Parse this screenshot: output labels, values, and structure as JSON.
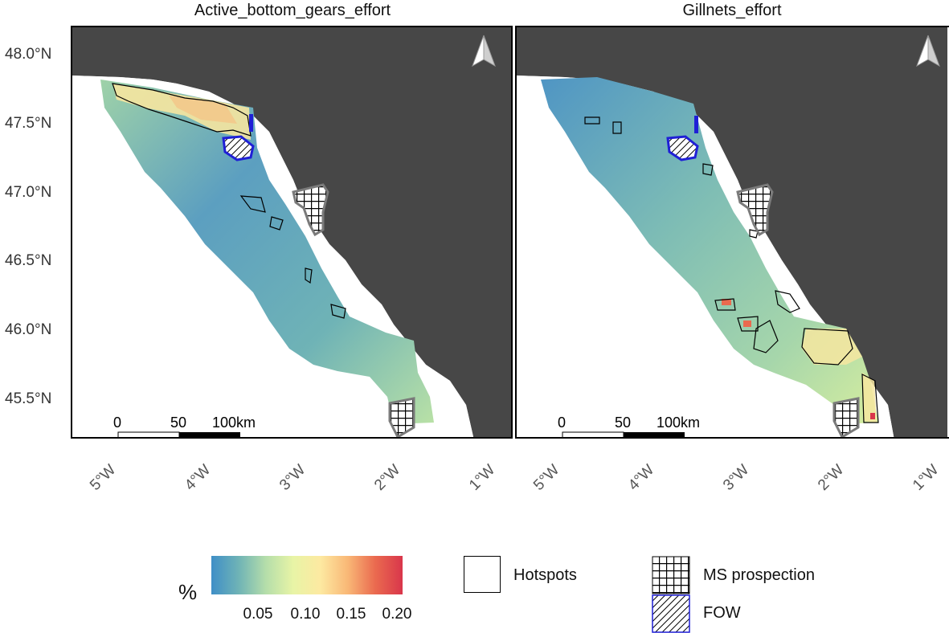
{
  "panels": [
    {
      "title": "Active_bottom_gears_effort"
    },
    {
      "title": "Gillnets_effort"
    }
  ],
  "axes": {
    "y_ticks": [
      "48.0°N",
      "47.5°N",
      "47.0°N",
      "46.5°N",
      "46.0°N",
      "45.5°N"
    ],
    "x_ticks": [
      "5°W",
      "4°W",
      "3°W",
      "2°W",
      "1°W"
    ]
  },
  "scalebar": {
    "labels": [
      "0",
      "50",
      "100km"
    ]
  },
  "legend": {
    "unit": "%",
    "ticks": [
      "0.05",
      "0.10",
      "0.15",
      "0.20"
    ],
    "colors": [
      "#3f8fc7",
      "#6fb3b6",
      "#b5deaa",
      "#e8f4a6",
      "#fde9a1",
      "#f9b776",
      "#ea6a4f",
      "#d9364b"
    ],
    "hotspots_label": "Hotspots",
    "ms_label": "MS prospection",
    "fow_label": "FOW"
  },
  "colors": {
    "land": "#474747",
    "hotspot_fill": "#ffffff",
    "fow_outline": "#1f1fd6",
    "ms_outline": "#7a7a7a"
  },
  "icons": [
    "north-arrow-icon",
    "grid-hatch-icon",
    "diagonal-hatch-icon"
  ]
}
